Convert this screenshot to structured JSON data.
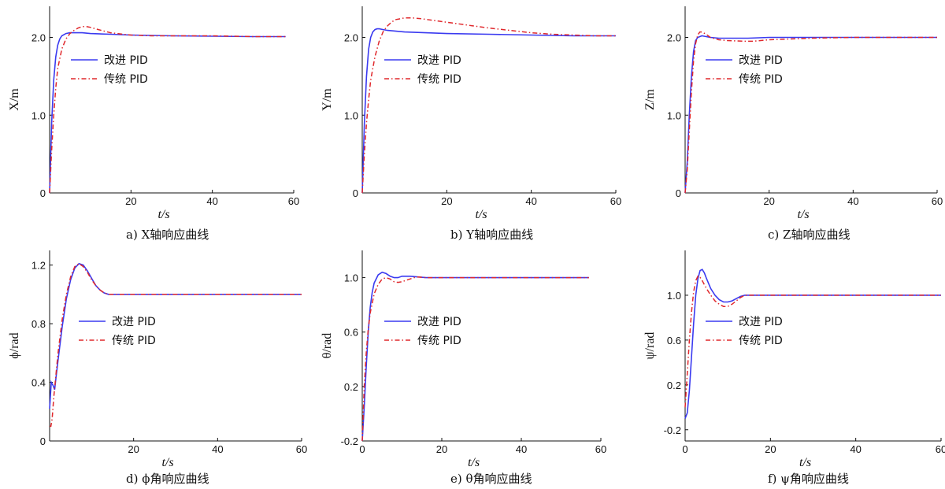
{
  "colors": {
    "improved": "#3a3af0",
    "traditional": "#e0282c",
    "axis": "#111111"
  },
  "chart_data": [
    {
      "type": "line",
      "id": "a",
      "caption": "a)  X轴响应曲线",
      "xlabel": "t/s",
      "ylabel": "X/m",
      "xlim": [
        0,
        60
      ],
      "ylim": [
        0,
        2.4
      ],
      "xticks": [
        20,
        40,
        60
      ],
      "yticks": [
        0,
        1.0,
        2.0
      ],
      "ytick_labels": [
        "0",
        "1.0",
        "2.0"
      ],
      "legend": "upper-left",
      "series": [
        {
          "name": "改进 PID",
          "x": [
            0,
            0.5,
            1,
            1.5,
            2,
            2.5,
            3,
            4,
            5,
            6,
            8,
            10,
            15,
            20,
            30,
            40,
            50,
            58
          ],
          "y": [
            0,
            0.9,
            1.45,
            1.75,
            1.9,
            1.98,
            2.02,
            2.05,
            2.06,
            2.06,
            2.06,
            2.05,
            2.04,
            2.03,
            2.02,
            2.015,
            2.01,
            2.01
          ]
        },
        {
          "name": "传统 PID",
          "x": [
            0,
            0.5,
            1,
            1.5,
            2,
            3,
            4,
            5,
            6,
            7,
            8,
            9,
            10,
            12,
            15,
            18,
            20,
            25,
            30,
            40,
            50,
            58
          ],
          "y": [
            0,
            0.55,
            1.0,
            1.35,
            1.6,
            1.85,
            1.98,
            2.05,
            2.09,
            2.12,
            2.14,
            2.14,
            2.13,
            2.1,
            2.06,
            2.04,
            2.03,
            2.02,
            2.02,
            2.02,
            2.01,
            2.01
          ]
        }
      ]
    },
    {
      "type": "line",
      "id": "b",
      "caption": "b)  Y轴响应曲线",
      "xlabel": "t/s",
      "ylabel": "Y/m",
      "xlim": [
        0,
        60
      ],
      "ylim": [
        0,
        2.4
      ],
      "xticks": [
        20,
        40,
        60
      ],
      "yticks": [
        0,
        1.0,
        2.0
      ],
      "ytick_labels": [
        "0",
        "1.0",
        "2.0"
      ],
      "legend": "upper-left",
      "series": [
        {
          "name": "改进 PID",
          "x": [
            0,
            0.5,
            1,
            1.5,
            2,
            2.5,
            3,
            3.5,
            4,
            5,
            6,
            8,
            10,
            15,
            20,
            30,
            40,
            50,
            60
          ],
          "y": [
            0,
            0.9,
            1.5,
            1.85,
            2.0,
            2.07,
            2.1,
            2.11,
            2.11,
            2.1,
            2.09,
            2.08,
            2.07,
            2.06,
            2.05,
            2.04,
            2.03,
            2.02,
            2.02
          ]
        },
        {
          "name": "传统 PID",
          "x": [
            0,
            0.5,
            1,
            1.5,
            2,
            3,
            4,
            5,
            6,
            7,
            8,
            9,
            10,
            12,
            14,
            18,
            22,
            26,
            30,
            35,
            40,
            45,
            50,
            55,
            60
          ],
          "y": [
            0,
            0.5,
            0.9,
            1.2,
            1.45,
            1.75,
            1.95,
            2.08,
            2.15,
            2.2,
            2.23,
            2.24,
            2.25,
            2.25,
            2.24,
            2.21,
            2.18,
            2.15,
            2.12,
            2.09,
            2.06,
            2.04,
            2.03,
            2.02,
            2.02
          ]
        }
      ]
    },
    {
      "type": "line",
      "id": "c",
      "caption": "c)  Z轴响应曲线",
      "xlabel": "t/s",
      "ylabel": "Z/m",
      "xlim": [
        0,
        60
      ],
      "ylim": [
        0,
        2.4
      ],
      "xticks": [
        20,
        40,
        60
      ],
      "yticks": [
        0,
        1.0,
        2.0
      ],
      "ytick_labels": [
        "0",
        "1.0",
        "2.0"
      ],
      "legend": "upper-left",
      "series": [
        {
          "name": "改进 PID",
          "x": [
            0,
            0.5,
            1,
            1.5,
            2,
            2.5,
            3,
            4,
            5,
            6,
            8,
            10,
            15,
            20,
            30,
            40,
            50,
            60
          ],
          "y": [
            0,
            0.4,
            1.0,
            1.5,
            1.82,
            1.96,
            2.0,
            2.02,
            2.01,
            2.0,
            1.99,
            1.99,
            1.99,
            2.0,
            2.0,
            2.0,
            2.0,
            2.0
          ]
        },
        {
          "name": "传统 PID",
          "x": [
            0,
            0.5,
            1,
            1.5,
            2,
            2.5,
            3,
            3.5,
            4,
            5,
            6,
            8,
            10,
            12,
            14,
            16,
            18,
            20,
            25,
            30,
            40,
            50,
            60
          ],
          "y": [
            0,
            0.3,
            0.8,
            1.3,
            1.7,
            1.92,
            2.03,
            2.07,
            2.07,
            2.04,
            2.0,
            1.97,
            1.96,
            1.955,
            1.95,
            1.95,
            1.96,
            1.97,
            1.98,
            1.99,
            2.0,
            2.0,
            2.0
          ]
        }
      ]
    },
    {
      "type": "line",
      "id": "d",
      "caption": "d)  ϕ角响应曲线",
      "xlabel": "t/s",
      "ylabel": "ϕ/rad",
      "xlim": [
        0,
        60
      ],
      "ylim": [
        0,
        1.3
      ],
      "xticks": [
        20,
        40,
        60
      ],
      "yticks": [
        0,
        0.4,
        0.8,
        1.2
      ],
      "ytick_labels": [
        "0",
        "0.4",
        "0.8",
        "1.2"
      ],
      "legend": "center-left",
      "series": [
        {
          "name": "改进 PID",
          "x": [
            0,
            0.4,
            0.8,
            1.2,
            1.6,
            2,
            3,
            4,
            5,
            6,
            7,
            8,
            9,
            10,
            11,
            12,
            13,
            14,
            15,
            16,
            17,
            18,
            20,
            25,
            30,
            40,
            50,
            60
          ],
          "y": [
            0.22,
            0.4,
            0.38,
            0.35,
            0.45,
            0.55,
            0.78,
            0.97,
            1.1,
            1.18,
            1.21,
            1.2,
            1.16,
            1.11,
            1.06,
            1.03,
            1.01,
            1.0,
            1.0,
            1.0,
            1.0,
            1.0,
            1.0,
            1.0,
            1.0,
            1.0,
            1.0,
            1.0
          ]
        },
        {
          "name": "传统 PID",
          "x": [
            0,
            0.3,
            0.6,
            1,
            1.5,
            2,
            3,
            4,
            5,
            6,
            7,
            8,
            9,
            10,
            11,
            12,
            13,
            14,
            15,
            16,
            18,
            20,
            25,
            30,
            40,
            50,
            60
          ],
          "y": [
            0.1,
            0.1,
            0.15,
            0.3,
            0.45,
            0.6,
            0.83,
            1.0,
            1.12,
            1.19,
            1.21,
            1.19,
            1.15,
            1.1,
            1.06,
            1.03,
            1.01,
            1.0,
            1.0,
            1.0,
            1.0,
            1.0,
            1.0,
            1.0,
            1.0,
            1.0,
            1.0
          ]
        }
      ]
    },
    {
      "type": "line",
      "id": "e",
      "caption": "e)  θ角响应曲线",
      "xlabel": "t/s",
      "ylabel": "θ/rad",
      "xlim": [
        0,
        60
      ],
      "ylim": [
        -0.2,
        1.2
      ],
      "xticks": [
        0,
        20,
        40,
        60
      ],
      "yticks": [
        -0.2,
        0.2,
        0.6,
        1.0
      ],
      "ytick_labels": [
        "-0.2",
        "0.2",
        "0.6",
        "1.0"
      ],
      "legend": "center-left",
      "series": [
        {
          "name": "改进 PID",
          "x": [
            0,
            0.5,
            1,
            1.5,
            2,
            2.5,
            3,
            4,
            5,
            6,
            7,
            8,
            9,
            10,
            12,
            14,
            16,
            20,
            30,
            40,
            50,
            57
          ],
          "y": [
            -0.2,
            0.05,
            0.35,
            0.6,
            0.78,
            0.89,
            0.96,
            1.02,
            1.04,
            1.03,
            1.01,
            1.0,
            1.0,
            1.01,
            1.01,
            1.005,
            1.0,
            1.0,
            1.0,
            1.0,
            1.0,
            1.0
          ]
        },
        {
          "name": "传统 PID",
          "x": [
            0,
            0.5,
            1,
            1.5,
            2,
            3,
            4,
            5,
            6,
            7,
            8,
            9,
            10,
            11,
            12,
            13,
            14,
            16,
            18,
            20,
            30,
            40,
            50,
            57
          ],
          "y": [
            -0.2,
            0.2,
            0.45,
            0.62,
            0.74,
            0.88,
            0.95,
            0.99,
            1.0,
            0.99,
            0.97,
            0.965,
            0.97,
            0.98,
            0.99,
            1.0,
            1.005,
            1.0,
            1.0,
            1.0,
            1.0,
            1.0,
            1.0,
            1.0
          ]
        }
      ]
    },
    {
      "type": "line",
      "id": "f",
      "caption": "f)  ψ角响应曲线",
      "xlabel": "t/s",
      "ylabel": "ψ/rad",
      "xlim": [
        0,
        60
      ],
      "ylim": [
        -0.3,
        1.4
      ],
      "xticks": [
        0,
        20,
        40,
        60
      ],
      "yticks": [
        -0.2,
        0.2,
        0.6,
        1.0
      ],
      "ytick_labels": [
        "-0.2",
        "0.2",
        "0.6",
        "1.0"
      ],
      "legend": "center-left",
      "series": [
        {
          "name": "改进 PID",
          "x": [
            0,
            0.5,
            1,
            1.5,
            2,
            2.5,
            3,
            3.5,
            4,
            4.5,
            5,
            6,
            7,
            8,
            9,
            10,
            11,
            12,
            13,
            14,
            15,
            16,
            18,
            20,
            30,
            40,
            50,
            60
          ],
          "y": [
            -0.1,
            -0.05,
            0.15,
            0.45,
            0.75,
            1.0,
            1.15,
            1.22,
            1.23,
            1.2,
            1.15,
            1.06,
            1.0,
            0.96,
            0.94,
            0.94,
            0.95,
            0.97,
            0.99,
            1.0,
            1.0,
            1.0,
            1.0,
            1.0,
            1.0,
            1.0,
            1.0,
            1.0
          ]
        },
        {
          "name": "传统 PID",
          "x": [
            0,
            0.5,
            1,
            1.5,
            2,
            2.5,
            3,
            3.5,
            4,
            5,
            6,
            7,
            8,
            9,
            10,
            11,
            12,
            13,
            14,
            15,
            16,
            18,
            20,
            30,
            40,
            50,
            60
          ],
          "y": [
            0.0,
            0.3,
            0.6,
            0.85,
            1.03,
            1.13,
            1.17,
            1.16,
            1.13,
            1.06,
            1.0,
            0.95,
            0.92,
            0.9,
            0.9,
            0.92,
            0.95,
            0.98,
            1.0,
            1.0,
            1.0,
            1.0,
            1.0,
            1.0,
            1.0,
            1.0,
            1.0
          ]
        }
      ]
    }
  ]
}
